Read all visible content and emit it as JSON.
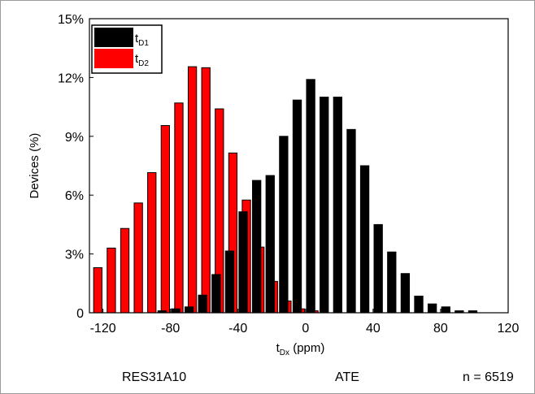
{
  "chart_data": {
    "type": "bar",
    "title": "",
    "xlabel": {
      "main": "t",
      "sub": "Dx",
      "unit": " (ppm)"
    },
    "ylabel": "Devices (%)",
    "x_bin_width": 8,
    "xlim": [
      -128,
      120
    ],
    "ylim": [
      0,
      15
    ],
    "xticks": [
      -120,
      -80,
      -40,
      0,
      40,
      80,
      120
    ],
    "yticks": [
      0,
      3,
      6,
      9,
      12,
      15
    ],
    "ytick_labels": [
      "0",
      "3%",
      "6%",
      "9%",
      "12%",
      "15%"
    ],
    "grid": false,
    "legend_position": "top-left",
    "series": [
      {
        "name": "tD1",
        "legend_main": "t",
        "legend_sub": "D1",
        "color": "#000000",
        "x": [
          -88,
          -80,
          -72,
          -64,
          -56,
          -48,
          -40,
          -32,
          -24,
          -16,
          -8,
          0,
          8,
          16,
          24,
          32,
          40,
          48,
          56,
          64,
          72,
          80,
          88,
          96,
          104,
          112
        ],
        "values": [
          0.1,
          0.2,
          0.3,
          0.9,
          1.95,
          3.15,
          5.15,
          6.75,
          7.0,
          9.0,
          10.85,
          11.9,
          11.0,
          11.0,
          9.35,
          7.5,
          4.5,
          3.1,
          2.0,
          0.85,
          0.45,
          0.3,
          0.1,
          0.1,
          0.0,
          0.0
        ]
      },
      {
        "name": "tD2",
        "legend_main": "t",
        "legend_sub": "D2",
        "color": "#ff0000",
        "x": [
          -120,
          -112,
          -104,
          -96,
          -88,
          -80,
          -72,
          -64,
          -56,
          -48,
          -40,
          -32,
          -24,
          -16,
          -8,
          0,
          8,
          16,
          24,
          32
        ],
        "values": [
          2.3,
          3.3,
          4.3,
          5.6,
          7.15,
          9.55,
          10.7,
          12.55,
          12.5,
          10.4,
          8.15,
          5.75,
          3.35,
          1.6,
          0.6,
          0.2,
          0.1,
          0.0,
          0.0,
          0.0
        ]
      }
    ]
  },
  "footer": {
    "part": "RES31A10",
    "test": "ATE",
    "sample": "n = 6519"
  }
}
